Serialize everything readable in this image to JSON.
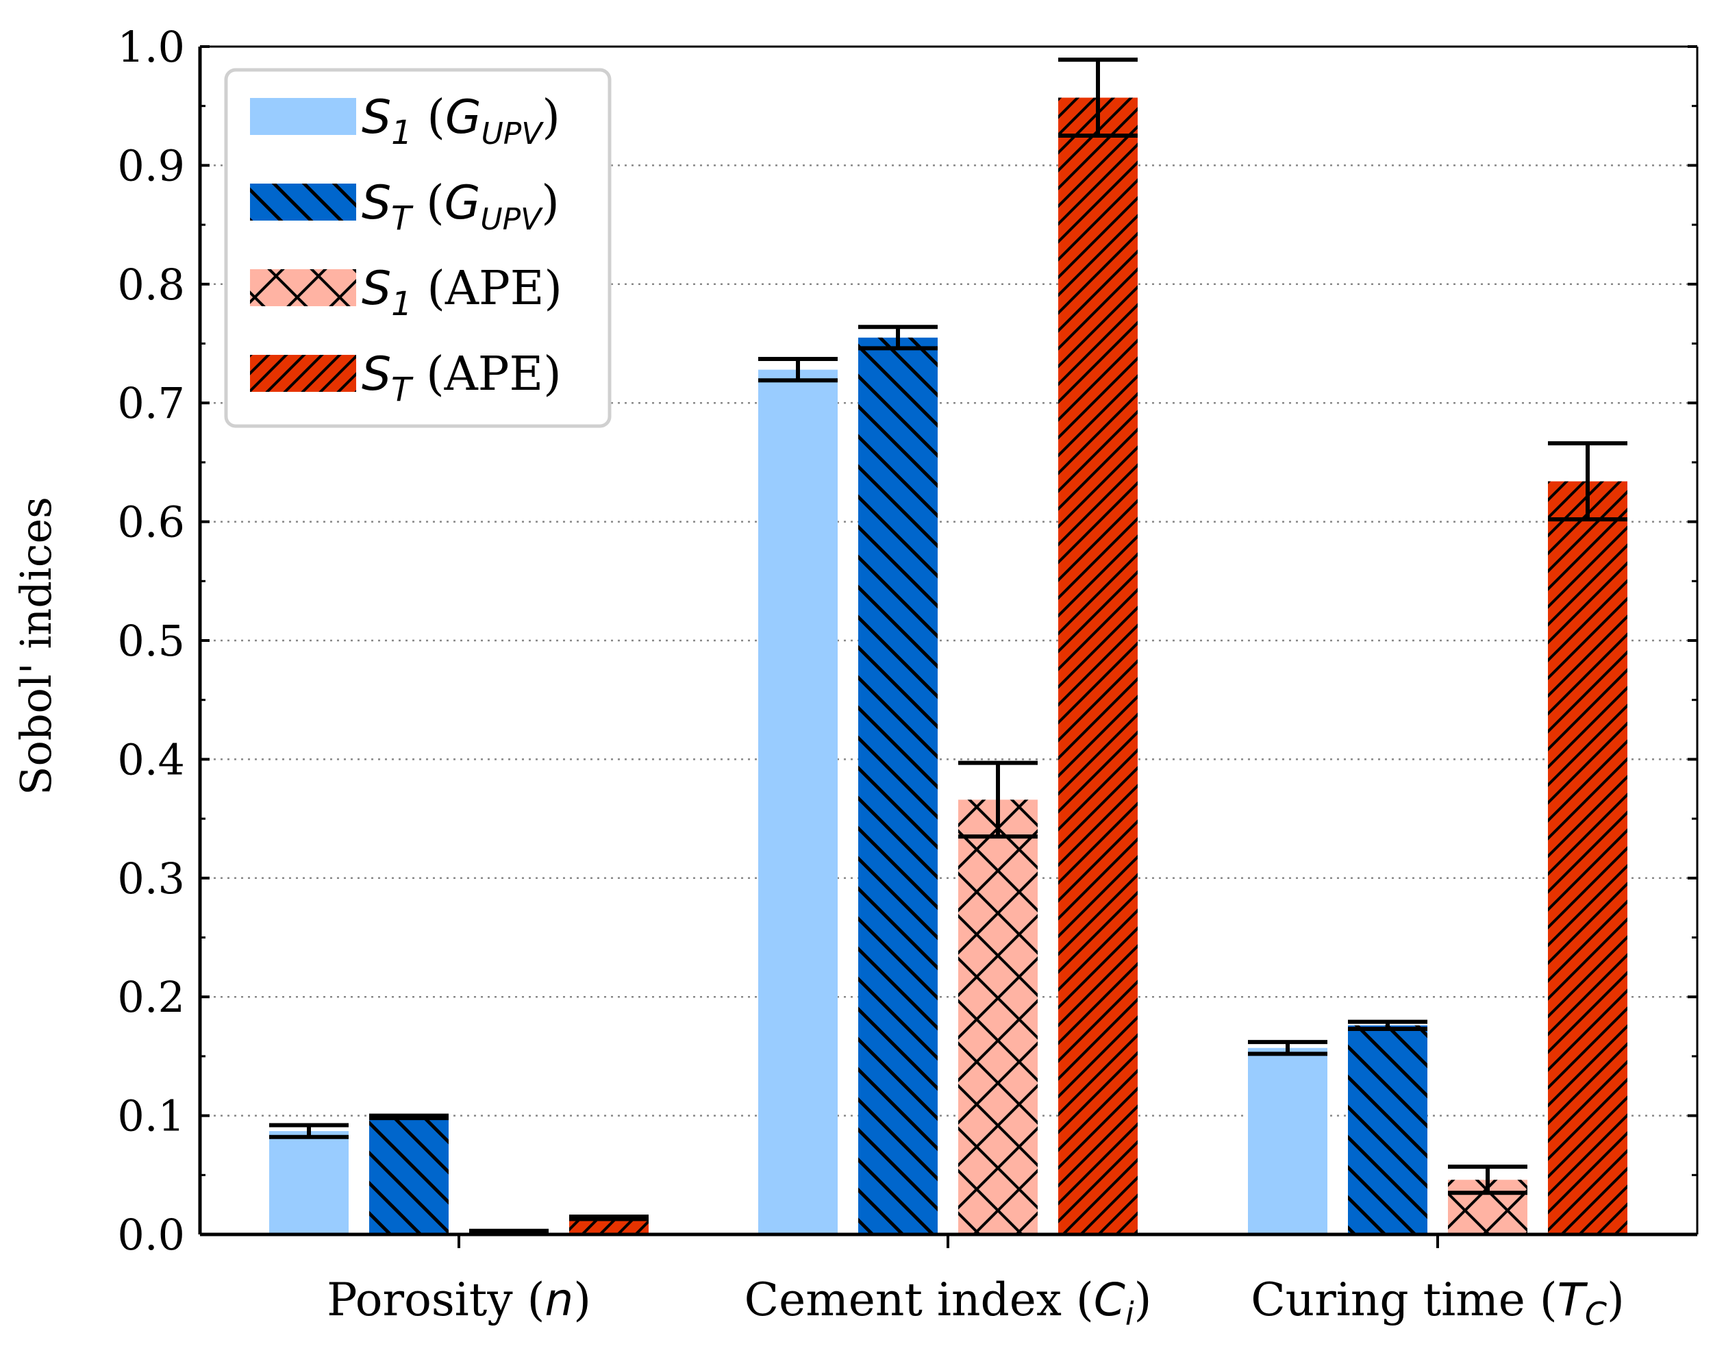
{
  "chart_data": {
    "type": "bar",
    "title": "",
    "xlabel": "",
    "ylabel": "Sobol' indices",
    "ylim": [
      0,
      1.0
    ],
    "yticks": [
      "0.0",
      "0.1",
      "0.2",
      "0.3",
      "0.4",
      "0.5",
      "0.6",
      "0.7",
      "0.8",
      "0.9",
      "1.0"
    ],
    "ytick_values": [
      0.0,
      0.1,
      0.2,
      0.3,
      0.4,
      0.5,
      0.6,
      0.7,
      0.8,
      0.9,
      1.0
    ],
    "grid": "y-dotted",
    "legend_position": "top-left",
    "categories": [
      {
        "text": "Porosity (",
        "sym": "n",
        "sub": "",
        "close": ")"
      },
      {
        "text": "Cement index (",
        "sym": "C",
        "sub": "i",
        "close": ")"
      },
      {
        "text": "Curing time (",
        "sym": "T",
        "sub": "C",
        "close": ")"
      }
    ],
    "series": [
      {
        "name": "S1 (GUPV)",
        "legend": {
          "sym": "S",
          "sub": "1",
          "rest_pre": " (",
          "arg": "G",
          "arg_sub": "UPV",
          "rest_post": ")"
        },
        "color": "#99ccff",
        "hatch": "none",
        "values": [
          0.087,
          0.728,
          0.157
        ],
        "errors": [
          0.005,
          0.009,
          0.005
        ]
      },
      {
        "name": "ST (GUPV)",
        "legend": {
          "sym": "S",
          "sub": "T",
          "rest_pre": " (",
          "arg": "G",
          "arg_sub": "UPV",
          "rest_post": ")"
        },
        "color": "#0066cc",
        "hatch": "backslash",
        "values": [
          0.099,
          0.755,
          0.176
        ],
        "errors": [
          0.001,
          0.009,
          0.003
        ]
      },
      {
        "name": "S1 (APE)",
        "legend": {
          "sym": "S",
          "sub": "1",
          "rest_pre": " (APE)",
          "arg": "",
          "arg_sub": "",
          "rest_post": ""
        },
        "color": "#ffb3a3",
        "hatch": "cross",
        "values": [
          0.002,
          0.366,
          0.046
        ],
        "errors": [
          0.001,
          0.031,
          0.011
        ]
      },
      {
        "name": "ST (APE)",
        "legend": {
          "sym": "S",
          "sub": "T",
          "rest_pre": " (APE)",
          "arg": "",
          "arg_sub": "",
          "rest_post": ""
        },
        "color": "#e63300",
        "hatch": "slash",
        "values": [
          0.014,
          0.957,
          0.634
        ],
        "errors": [
          0.001,
          0.032,
          0.032
        ]
      }
    ]
  }
}
